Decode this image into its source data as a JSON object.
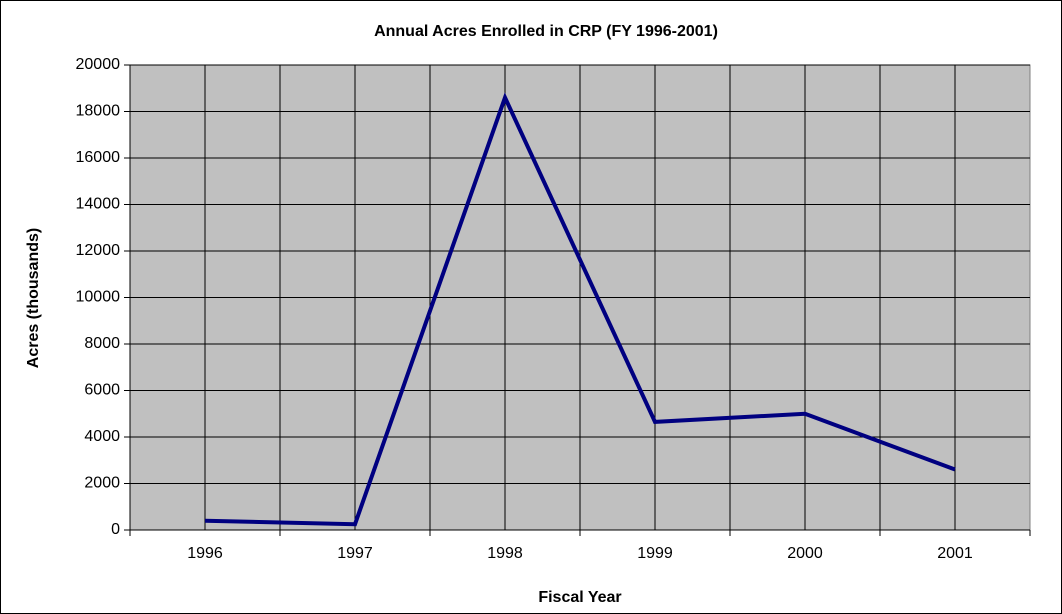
{
  "chart_data": {
    "type": "line",
    "title": "Annual Acres Enrolled in CRP (FY 1996-2001)",
    "x_label": "Fiscal Year",
    "y_label": "Acres (thousands)",
    "categories": [
      "1996",
      "1997",
      "1998",
      "1999",
      "2000",
      "2001"
    ],
    "series": [
      {
        "name": "Acres",
        "color": "#000080",
        "values": [
          400,
          250,
          18600,
          4650,
          5000,
          2600
        ]
      }
    ],
    "ylim": [
      0,
      20000
    ],
    "yticks": [
      0,
      2000,
      4000,
      6000,
      8000,
      10000,
      12000,
      14000,
      16000,
      18000,
      20000
    ],
    "grid": true
  }
}
